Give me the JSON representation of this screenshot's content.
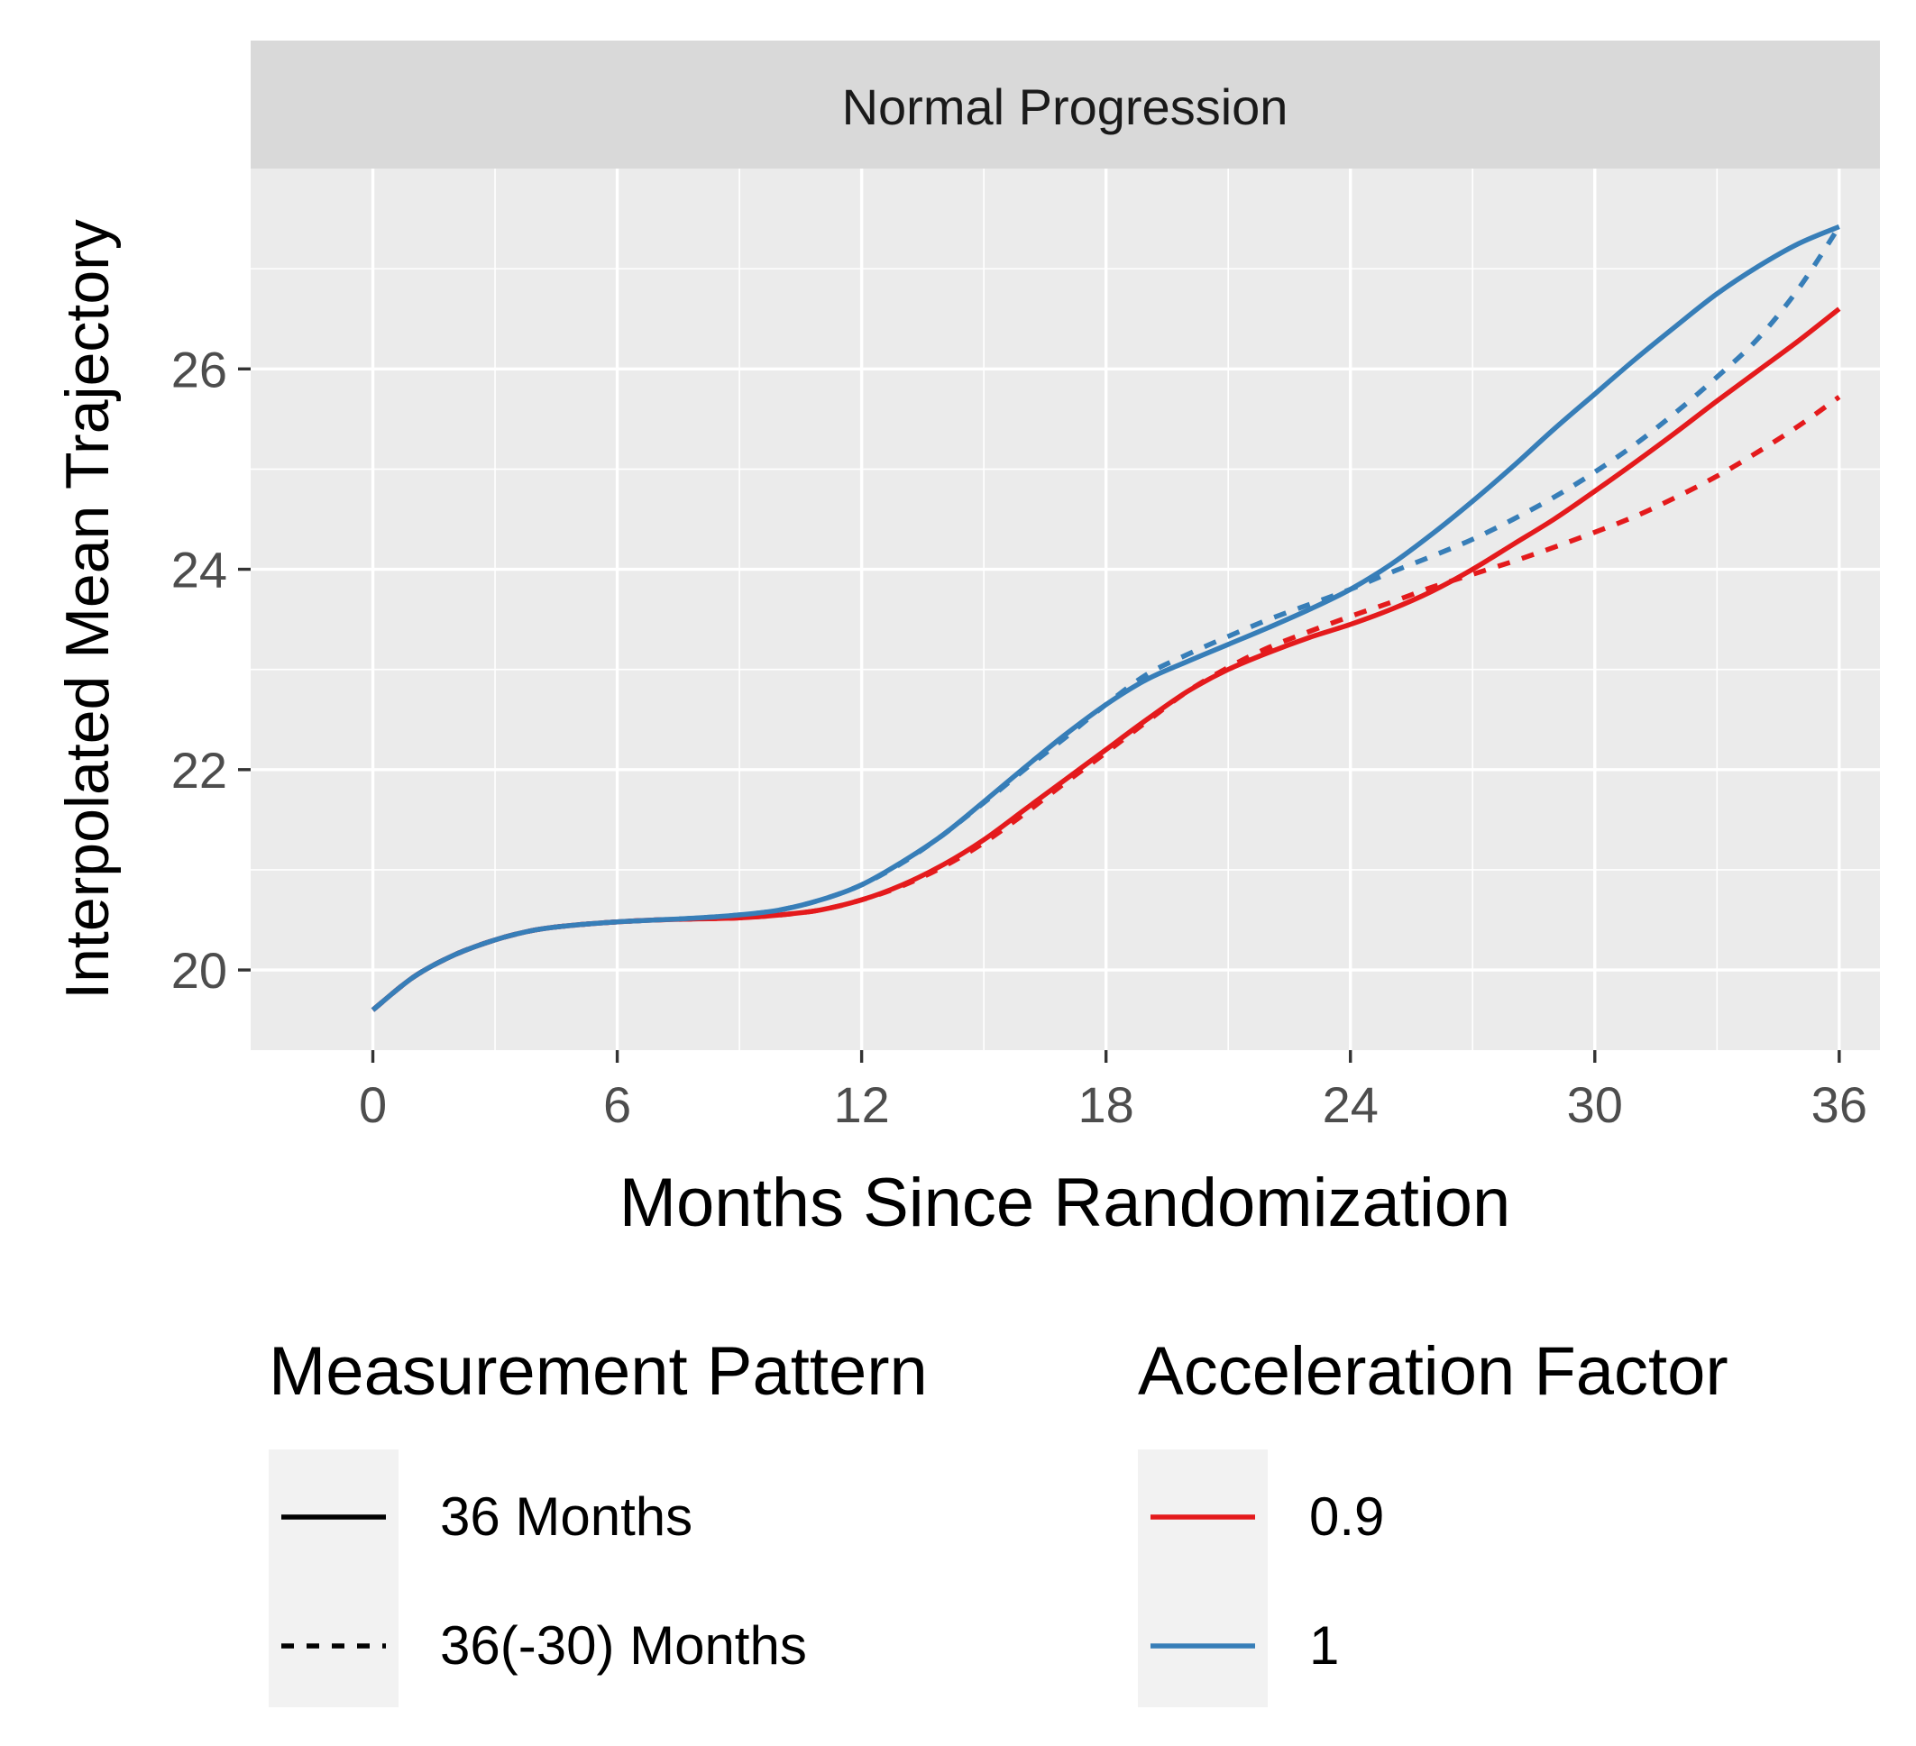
{
  "chart_data": {
    "type": "line",
    "facet_title": "Normal Progression",
    "xlabel": "Months Since Randomization",
    "ylabel": "Interpolated Mean Trajectory",
    "xlim": [
      -3,
      37
    ],
    "ylim": [
      19.2,
      28.0
    ],
    "x_ticks": [
      0,
      6,
      12,
      18,
      24,
      30,
      36
    ],
    "y_ticks": [
      20,
      22,
      24,
      26
    ],
    "grid": true,
    "legend_position": "bottom",
    "legends": [
      {
        "title": "Measurement Pattern",
        "key": "linetype",
        "entries": [
          {
            "label": "36 Months",
            "style": "solid"
          },
          {
            "label": "36(-30) Months",
            "style": "dashed"
          }
        ]
      },
      {
        "title": "Acceleration Factor",
        "key": "color",
        "entries": [
          {
            "label": "0.9",
            "color": "#E41A1C"
          },
          {
            "label": "1",
            "color": "#377EB8"
          }
        ]
      }
    ],
    "x": [
      0,
      1,
      2,
      3,
      4,
      5,
      6,
      7,
      8,
      9,
      10,
      11,
      12,
      13,
      14,
      15,
      16,
      17,
      18,
      19,
      20,
      21,
      22,
      23,
      24,
      25,
      26,
      27,
      28,
      29,
      30,
      31,
      32,
      33,
      34,
      35,
      36
    ],
    "series": [
      {
        "name": "0.9",
        "pattern": "36 Months",
        "color": "#E41A1C",
        "style": "solid",
        "values": [
          19.6,
          19.93,
          20.15,
          20.3,
          20.4,
          20.45,
          20.48,
          20.5,
          20.51,
          20.52,
          20.55,
          20.6,
          20.7,
          20.85,
          21.05,
          21.3,
          21.6,
          21.9,
          22.2,
          22.5,
          22.78,
          23.0,
          23.17,
          23.32,
          23.45,
          23.6,
          23.78,
          24.0,
          24.25,
          24.5,
          24.78,
          25.07,
          25.37,
          25.68,
          25.98,
          26.28,
          26.6
        ]
      },
      {
        "name": "0.9",
        "pattern": "36(-30) Months",
        "color": "#E41A1C",
        "style": "dashed",
        "values": [
          19.6,
          19.93,
          20.15,
          20.3,
          20.4,
          20.45,
          20.48,
          20.5,
          20.51,
          20.52,
          20.55,
          20.6,
          20.7,
          20.84,
          21.03,
          21.27,
          21.56,
          21.87,
          22.17,
          22.48,
          22.78,
          23.02,
          23.22,
          23.38,
          23.53,
          23.67,
          23.82,
          23.95,
          24.08,
          24.22,
          24.37,
          24.53,
          24.72,
          24.93,
          25.17,
          25.43,
          25.72
        ]
      },
      {
        "name": "1",
        "pattern": "36 Months",
        "color": "#377EB8",
        "style": "solid",
        "values": [
          19.6,
          19.93,
          20.15,
          20.3,
          20.4,
          20.45,
          20.48,
          20.5,
          20.52,
          20.55,
          20.6,
          20.7,
          20.85,
          21.08,
          21.35,
          21.68,
          22.02,
          22.35,
          22.65,
          22.9,
          23.08,
          23.25,
          23.42,
          23.6,
          23.8,
          24.05,
          24.35,
          24.68,
          25.03,
          25.4,
          25.75,
          26.1,
          26.43,
          26.75,
          27.02,
          27.25,
          27.42
        ]
      },
      {
        "name": "1",
        "pattern": "36(-30) Months",
        "color": "#377EB8",
        "style": "dashed",
        "values": [
          19.6,
          19.93,
          20.15,
          20.3,
          20.4,
          20.45,
          20.48,
          20.5,
          20.52,
          20.55,
          20.6,
          20.7,
          20.85,
          21.07,
          21.35,
          21.67,
          22.0,
          22.32,
          22.65,
          22.95,
          23.15,
          23.33,
          23.5,
          23.65,
          23.8,
          23.97,
          24.13,
          24.3,
          24.5,
          24.72,
          24.97,
          25.25,
          25.57,
          25.92,
          26.3,
          26.8,
          27.42
        ]
      }
    ]
  }
}
